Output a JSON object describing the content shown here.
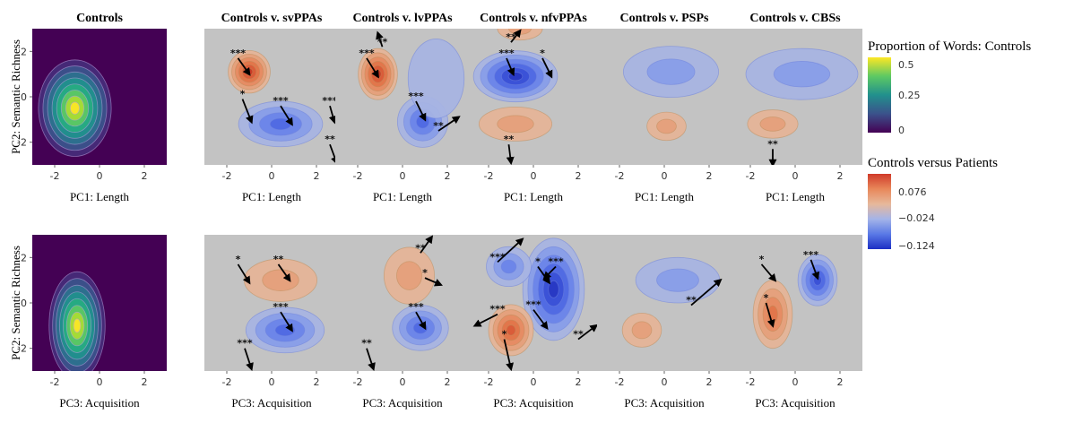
{
  "chart_data": {
    "type": "heatmap",
    "columns": [
      "Controls",
      "Controls v. svPPAs",
      "Controls v. lvPPAs",
      "Controls v. nfvPPAs",
      "Controls v. PSPs",
      "Controls v. CBSs"
    ],
    "ylabel": "PC2: Semantic Richness",
    "xlabels": [
      "PC1: Length",
      "PC3: Acquisition"
    ],
    "xlim": [
      -3,
      3
    ],
    "ylim": [
      -3,
      3
    ],
    "xticks": [
      -2,
      0,
      2
    ],
    "yticks": [
      2,
      0,
      -2
    ],
    "legend_controls": {
      "title": "Proportion of Words: Controls",
      "ticks": [
        "0.5",
        "0.25",
        "0"
      ],
      "colors": [
        "#440154",
        "#3b528b",
        "#21908d",
        "#5dc963",
        "#fde725"
      ]
    },
    "legend_diff": {
      "title": "Controls versus Patients",
      "ticks": [
        "0.076",
        "−0.024",
        "−0.124"
      ],
      "colors": [
        "#1c2fc4",
        "#5a79e6",
        "#a4b4e8",
        "#e7b89a",
        "#e8875a",
        "#d03a2a"
      ]
    },
    "panels": [
      {
        "row": 0,
        "col": 0,
        "kind": "density",
        "blobs": [
          {
            "x": -1.1,
            "y": -0.5,
            "sx": 1.3,
            "sy": 1.7,
            "w": 1.0
          }
        ]
      },
      {
        "row": 0,
        "col": 1,
        "kind": "diff",
        "blobs": [
          {
            "x": -1.0,
            "y": 1.1,
            "sx": 0.75,
            "sy": 0.75,
            "w": 0.14
          },
          {
            "x": 0.4,
            "y": -1.2,
            "sx": 1.5,
            "sy": 0.8,
            "w": -0.09
          }
        ],
        "arrows": [
          {
            "x0": -1.5,
            "y0": 1.7,
            "x1": -1.0,
            "y1": 1.0,
            "label": "***"
          },
          {
            "x0": -1.3,
            "y0": -0.1,
            "x1": -0.9,
            "y1": -1.1,
            "label": "*"
          },
          {
            "x0": 0.4,
            "y0": -0.4,
            "x1": 0.9,
            "y1": -1.2,
            "label": "***"
          },
          {
            "x0": 2.6,
            "y0": -0.4,
            "x1": 2.8,
            "y1": -1.1,
            "label": "***"
          },
          {
            "x0": 2.6,
            "y0": -2.1,
            "x1": 2.9,
            "y1": -2.9,
            "label": "**"
          }
        ]
      },
      {
        "row": 0,
        "col": 2,
        "kind": "diff",
        "blobs": [
          {
            "x": -1.1,
            "y": 1.0,
            "sx": 0.7,
            "sy": 0.9,
            "w": 0.13
          },
          {
            "x": 0.9,
            "y": -1.1,
            "sx": 0.9,
            "sy": 0.9,
            "w": -0.09
          },
          {
            "x": 1.5,
            "y": 0.8,
            "sx": 1.0,
            "sy": 1.4,
            "w": -0.03
          }
        ],
        "arrows": [
          {
            "x0": -1.6,
            "y0": 1.7,
            "x1": -1.1,
            "y1": 0.9,
            "label": "***"
          },
          {
            "x0": -0.9,
            "y0": 2.2,
            "x1": -1.1,
            "y1": 2.8,
            "label": "**"
          },
          {
            "x0": 0.6,
            "y0": -0.2,
            "x1": 1.0,
            "y1": -1.0,
            "label": "***"
          },
          {
            "x0": 1.6,
            "y0": -1.5,
            "x1": 2.5,
            "y1": -0.9,
            "label": "**"
          }
        ]
      },
      {
        "row": 0,
        "col": 3,
        "kind": "diff",
        "blobs": [
          {
            "x": -0.8,
            "y": 0.9,
            "sx": 1.5,
            "sy": 0.9,
            "w": -0.14
          },
          {
            "x": -0.8,
            "y": -1.2,
            "sx": 1.3,
            "sy": 0.6,
            "w": 0.05
          },
          {
            "x": -0.6,
            "y": 3.0,
            "sx": 0.8,
            "sy": 0.4,
            "w": 0.05
          }
        ],
        "arrows": [
          {
            "x0": -1.2,
            "y0": 1.7,
            "x1": -0.9,
            "y1": 1.0,
            "label": "***"
          },
          {
            "x0": 0.4,
            "y0": 1.7,
            "x1": 0.8,
            "y1": 0.9,
            "label": "*"
          },
          {
            "x0": -1.0,
            "y0": 2.4,
            "x1": -0.6,
            "y1": 2.9,
            "label": "**"
          },
          {
            "x0": -1.1,
            "y0": -2.1,
            "x1": -1.0,
            "y1": -2.9,
            "label": "**"
          }
        ]
      },
      {
        "row": 0,
        "col": 4,
        "kind": "diff",
        "blobs": [
          {
            "x": 0.3,
            "y": 1.1,
            "sx": 1.7,
            "sy": 0.9,
            "w": -0.035
          },
          {
            "x": 0.1,
            "y": -1.3,
            "sx": 0.7,
            "sy": 0.5,
            "w": 0.04
          }
        ],
        "arrows": []
      },
      {
        "row": 0,
        "col": 5,
        "kind": "diff",
        "blobs": [
          {
            "x": 0.3,
            "y": 1.0,
            "sx": 2.0,
            "sy": 0.9,
            "w": -0.045
          },
          {
            "x": -1.0,
            "y": -1.2,
            "sx": 0.9,
            "sy": 0.5,
            "w": 0.04
          }
        ],
        "arrows": [
          {
            "x0": -1.0,
            "y0": -2.3,
            "x1": -1.0,
            "y1": -3.0,
            "label": "**"
          }
        ]
      },
      {
        "row": 1,
        "col": 0,
        "kind": "density",
        "blobs": [
          {
            "x": -1.0,
            "y": -1.0,
            "sx": 1.0,
            "sy": 1.9,
            "w": 1.0
          }
        ]
      },
      {
        "row": 1,
        "col": 1,
        "kind": "diff",
        "blobs": [
          {
            "x": 0.4,
            "y": 1.0,
            "sx": 1.3,
            "sy": 0.75,
            "w": 0.05
          },
          {
            "x": 0.6,
            "y": -1.2,
            "sx": 1.4,
            "sy": 0.8,
            "w": -0.08
          }
        ],
        "arrows": [
          {
            "x0": -1.5,
            "y0": 1.7,
            "x1": -1.0,
            "y1": 0.9,
            "label": "*"
          },
          {
            "x0": 0.3,
            "y0": 1.7,
            "x1": 0.8,
            "y1": 1.0,
            "label": "**"
          },
          {
            "x0": 0.4,
            "y0": -0.4,
            "x1": 0.9,
            "y1": -1.2,
            "label": "***"
          },
          {
            "x0": -1.2,
            "y0": -2.0,
            "x1": -0.9,
            "y1": -2.9,
            "label": "***"
          }
        ]
      },
      {
        "row": 1,
        "col": 2,
        "kind": "diff",
        "blobs": [
          {
            "x": 0.3,
            "y": 1.2,
            "sx": 0.9,
            "sy": 1.0,
            "w": 0.045
          },
          {
            "x": 0.8,
            "y": -1.1,
            "sx": 1.0,
            "sy": 0.8,
            "w": -0.08
          }
        ],
        "arrows": [
          {
            "x0": 0.8,
            "y0": 2.2,
            "x1": 1.3,
            "y1": 2.9,
            "label": "**"
          },
          {
            "x0": 1.0,
            "y0": 1.1,
            "x1": 1.7,
            "y1": 0.8,
            "label": "*"
          },
          {
            "x0": 0.6,
            "y0": -0.4,
            "x1": 1.0,
            "y1": -1.1,
            "label": "***"
          },
          {
            "x0": -1.6,
            "y0": -2.0,
            "x1": -1.3,
            "y1": -2.9,
            "label": "**"
          }
        ]
      },
      {
        "row": 1,
        "col": 3,
        "kind": "diff",
        "blobs": [
          {
            "x": 0.9,
            "y": 0.6,
            "sx": 1.1,
            "sy": 1.8,
            "w": -0.14
          },
          {
            "x": -1.1,
            "y": 1.6,
            "sx": 0.8,
            "sy": 0.7,
            "w": -0.06
          },
          {
            "x": -1.0,
            "y": -1.2,
            "sx": 0.8,
            "sy": 0.9,
            "w": 0.11
          }
        ],
        "arrows": [
          {
            "x0": -1.6,
            "y0": 1.8,
            "x1": -0.5,
            "y1": 2.8,
            "label": "***"
          },
          {
            "x0": 0.2,
            "y0": 1.6,
            "x1": 0.7,
            "y1": 0.9,
            "label": "*"
          },
          {
            "x0": 1.0,
            "y0": 1.6,
            "x1": 0.5,
            "y1": 1.1,
            "label": "***"
          },
          {
            "x0": 0.0,
            "y0": -0.3,
            "x1": 0.6,
            "y1": -1.1,
            "label": "***"
          },
          {
            "x0": -1.6,
            "y0": -0.5,
            "x1": -2.6,
            "y1": -1.0,
            "label": "***"
          },
          {
            "x0": -1.3,
            "y0": -1.6,
            "x1": -1.0,
            "y1": -2.9,
            "label": "*"
          },
          {
            "x0": 2.0,
            "y0": -1.6,
            "x1": 2.8,
            "y1": -1.0,
            "label": "**"
          }
        ]
      },
      {
        "row": 1,
        "col": 4,
        "kind": "diff",
        "blobs": [
          {
            "x": 0.6,
            "y": 1.0,
            "sx": 1.5,
            "sy": 0.8,
            "w": -0.04
          },
          {
            "x": -1.0,
            "y": -1.2,
            "sx": 0.7,
            "sy": 0.6,
            "w": 0.035
          }
        ],
        "arrows": [
          {
            "x0": 1.2,
            "y0": -0.1,
            "x1": 2.5,
            "y1": 1.0,
            "label": "**"
          }
        ]
      },
      {
        "row": 1,
        "col": 5,
        "kind": "diff",
        "blobs": [
          {
            "x": 1.0,
            "y": 1.0,
            "sx": 0.7,
            "sy": 0.9,
            "w": -0.11
          },
          {
            "x": -1.0,
            "y": -0.5,
            "sx": 0.7,
            "sy": 1.2,
            "w": 0.08
          }
        ],
        "arrows": [
          {
            "x0": -1.5,
            "y0": 1.7,
            "x1": -0.9,
            "y1": 1.0,
            "label": "*"
          },
          {
            "x0": 0.7,
            "y0": 1.9,
            "x1": 1.0,
            "y1": 1.1,
            "label": "***"
          },
          {
            "x0": -1.3,
            "y0": 0.0,
            "x1": -1.0,
            "y1": -1.0,
            "label": "*"
          }
        ]
      }
    ]
  }
}
